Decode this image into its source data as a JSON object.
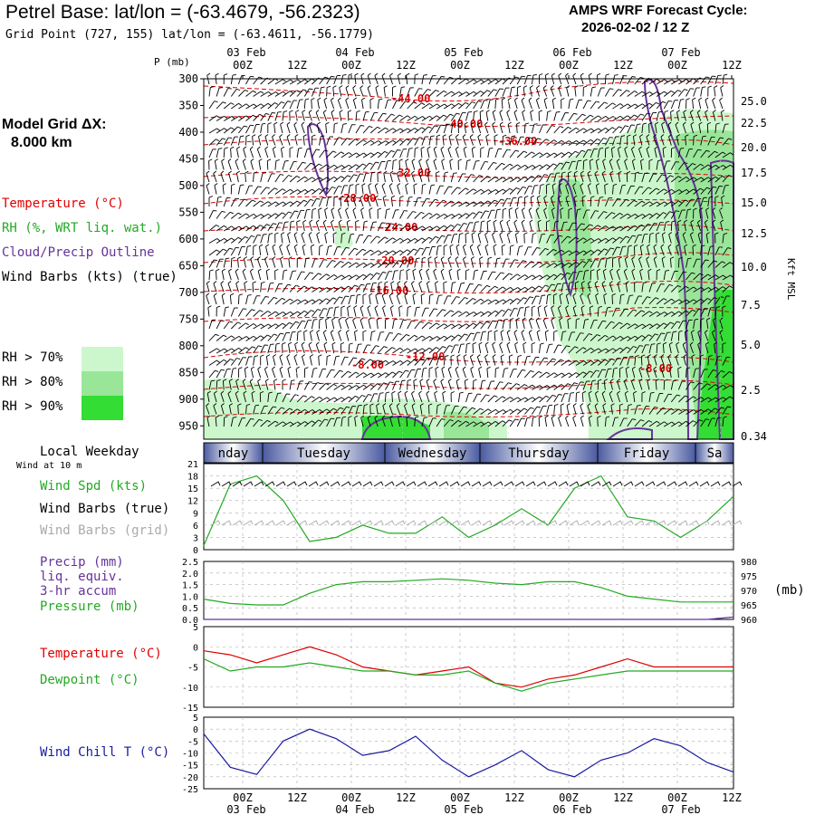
{
  "header": {
    "title": "Petrel Base:  lat/lon = (-63.4679, -56.2323)",
    "grid_point": "Grid Point (727, 155) lat/lon = (-63.4611, -56.1779)",
    "cycle_line1": "AMPS WRF Forecast Cycle:",
    "cycle_line2": "2026-02-02 / 12  Z"
  },
  "legend": {
    "model_grid_line1": "Model Grid ΔX:",
    "model_grid_line2": "8.000 km",
    "temperature": "Temperature (°C)",
    "rh": "RH (%, WRT liq. wat.)",
    "cloud": "Cloud/Precip Outline",
    "wind_barbs": "Wind Barbs (kts) (true)",
    "rh_levels": [
      {
        "label": "RH > 70%",
        "color": "#ccf7cc"
      },
      {
        "label": "RH > 80%",
        "color": "#99e699"
      },
      {
        "label": "RH > 90%",
        "color": "#33dd33"
      }
    ],
    "local_weekday": "Local Weekday",
    "wind_at": "Wind at 10 m",
    "wind_spd": "Wind Spd (kts)",
    "wind_barbs_true": "Wind Barbs (true)",
    "wind_barbs_grid": "Wind Barbs (grid)",
    "precip_line1": "Precip (mm)",
    "precip_line2": "liq. equiv.",
    "precip_line3": "3-hr accum",
    "pressure": "Pressure (mb)",
    "temperature2": "Temperature (°C)",
    "dewpoint": "Dewpoint (°C)",
    "wind_chill": "Wind Chill T (°C)",
    "kft_msl": "Kft MSL",
    "pressure_unit": "(mb)",
    "p_mb": "P (mb)"
  },
  "colors": {
    "temperature": "#e00000",
    "rh": "#22aa22",
    "cloud": "#663399",
    "pressure": "#22aa22",
    "wind_chill": "#1a1aa0",
    "weekday_dark": "#4a5aa0",
    "weekday_light": "#ffffff"
  },
  "time_axis": {
    "top_labels": [
      "00Z",
      "12Z",
      "00Z",
      "12Z",
      "00Z",
      "12Z",
      "00Z",
      "12Z",
      "00Z",
      "12Z"
    ],
    "dates": [
      "03 Feb",
      "04 Feb",
      "05 Feb",
      "06 Feb",
      "07 Feb"
    ],
    "weekdays": [
      "nday",
      "Tuesday",
      "Wednesday",
      "Thursday",
      "Friday",
      "Sa"
    ]
  },
  "chart_data": [
    {
      "type": "heatmap",
      "name": "time-height cross section",
      "y_pressure_ticks": [
        300,
        350,
        400,
        450,
        500,
        550,
        600,
        650,
        700,
        750,
        800,
        850,
        900,
        950
      ],
      "y_height_ticks": [
        "25.0",
        "22.5",
        "20.0",
        "17.5",
        "15.0",
        "12.5",
        "10.0",
        "7.5",
        "5.0",
        "2.5",
        "0.34"
      ],
      "temperature_contour_labels": [
        "-44.00",
        "-40.00",
        "-36.00",
        "-32.00",
        "-28.00",
        "-24.00",
        "-20.00",
        "-16.00",
        "-12.00",
        "-8.00",
        "-8.00"
      ],
      "ylim": [
        300,
        975
      ]
    },
    {
      "type": "line",
      "name": "wind speed",
      "ylim": [
        0,
        21
      ],
      "yticks": [
        0,
        3,
        6,
        9,
        12,
        15,
        18,
        21
      ],
      "x_hours": [
        0,
        6,
        12,
        18,
        24,
        30,
        36,
        42,
        48,
        54,
        60,
        66,
        72,
        78,
        84,
        90,
        96,
        102,
        108,
        114,
        120
      ],
      "values": [
        1,
        16,
        18,
        12,
        2,
        3,
        6,
        4,
        4,
        8,
        3,
        6,
        10,
        6,
        15,
        18,
        8,
        7,
        3,
        7,
        13
      ]
    },
    {
      "type": "line",
      "name": "precip and pressure",
      "ylim_left": [
        0,
        2.5
      ],
      "yticks_left": [
        "0.0",
        "0.5",
        "1.0",
        "1.5",
        "2.0",
        "2.5"
      ],
      "ylim_right": [
        960,
        980
      ],
      "yticks_right": [
        960,
        965,
        970,
        975,
        980
      ],
      "precip_values": [
        0,
        0,
        0,
        0,
        0,
        0,
        0,
        0,
        0,
        0,
        0,
        0,
        0,
        0,
        0,
        0,
        0,
        0,
        0,
        0,
        0.1
      ],
      "pressure_values": [
        967,
        965.5,
        965,
        965,
        969,
        972,
        973,
        973,
        973.5,
        974,
        973.5,
        972.5,
        972,
        973,
        973,
        971,
        968,
        967,
        966,
        966,
        966
      ]
    },
    {
      "type": "line",
      "name": "temperature and dewpoint",
      "ylim": [
        -15,
        5
      ],
      "yticks": [
        5,
        0,
        -5,
        -10,
        -15
      ],
      "temperature_values": [
        -1,
        -2,
        -4,
        -2,
        0,
        -2,
        -5,
        -6,
        -7,
        -6,
        -5,
        -9,
        -10,
        -8,
        -7,
        -5,
        -3,
        -5,
        -5,
        -5,
        -5
      ],
      "dewpoint_values": [
        -3,
        -6,
        -5,
        -5,
        -4,
        -5,
        -6,
        -6,
        -7,
        -7,
        -6,
        -9,
        -11,
        -9,
        -8,
        -7,
        -6,
        -6,
        -6,
        -6,
        -6
      ]
    },
    {
      "type": "line",
      "name": "wind chill",
      "ylim": [
        -25,
        5
      ],
      "yticks": [
        5,
        0,
        -5,
        -10,
        -15,
        -20,
        -25
      ],
      "values": [
        -2,
        -16,
        -19,
        -5,
        0,
        -4,
        -11,
        -9,
        -3,
        -13,
        -20,
        -15,
        -9,
        -17,
        -20,
        -13,
        -10,
        -4,
        -7,
        -14,
        -18
      ]
    }
  ]
}
